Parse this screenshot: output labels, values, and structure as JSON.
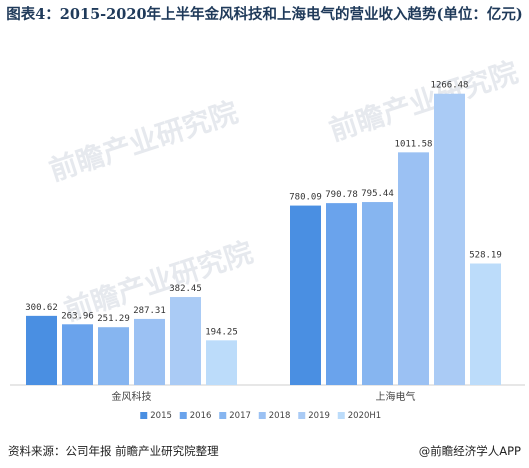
{
  "title": "图表4：2015-2020年上半年金风科技和上海电气的营业收入趋势(单位：亿元)",
  "source": "资料来源：公司年报 前瞻产业研究院整理",
  "brand": "@前瞻经济学人APP",
  "watermark": "前瞻产业研究院",
  "chart_data": {
    "type": "bar",
    "categories": [
      "金风科技",
      "上海电气"
    ],
    "series": [
      {
        "name": "2015",
        "values": [
          300.62,
          780.09
        ],
        "color": "#4a8fe2"
      },
      {
        "name": "2016",
        "values": [
          263.96,
          790.78
        ],
        "color": "#6aa3ec"
      },
      {
        "name": "2017",
        "values": [
          251.29,
          795.44
        ],
        "color": "#86b5f0"
      },
      {
        "name": "2018",
        "values": [
          287.31,
          1011.58
        ],
        "color": "#9bc1f3"
      },
      {
        "name": "2019",
        "values": [
          382.45,
          1266.48
        ],
        "color": "#aacbf5"
      },
      {
        "name": "2020H1",
        "values": [
          194.25,
          528.19
        ],
        "color": "#bcdcfa"
      }
    ],
    "value_labels": [
      [
        "300.62",
        "263.96",
        "251.29",
        "287.31",
        "382.45",
        "194.25"
      ],
      [
        "780.09",
        "790.78",
        "795.44",
        "1011.58",
        "1266.48",
        "528.19"
      ]
    ],
    "ylim": [
      0,
      1300
    ],
    "grid": false,
    "legend_position": "bottom"
  }
}
